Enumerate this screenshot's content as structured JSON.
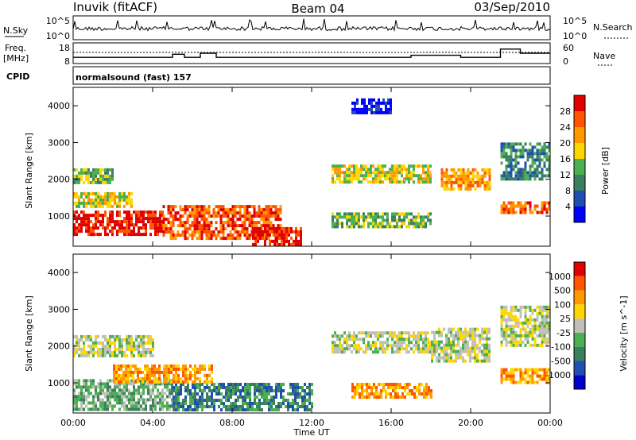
{
  "header": {
    "station": "Inuvik (fitACF)",
    "beam": "Beam 04",
    "date": "03/Sep/2010"
  },
  "top_panels": {
    "nsky_label": "N.Sky",
    "nsky_ticks": [
      "10^5",
      "10^0"
    ],
    "nsearch_label": "N.Search",
    "freq_label_1": "Freq.",
    "freq_label_2": "[MHz]",
    "freq_ticks": [
      "18",
      "8"
    ],
    "nave_label": "Nave",
    "nave_ticks": [
      "60",
      "0"
    ],
    "cpid_label": "CPID",
    "cpid_value": "normalsound (fast) 157"
  },
  "chart_data": [
    {
      "type": "heatmap",
      "name": "power",
      "ylabel": "Slant Range [km]",
      "yticks": [
        "4000",
        "3000",
        "2000",
        "1000"
      ],
      "ylim": [
        180,
        4500
      ],
      "xlim_hours": [
        0,
        24
      ],
      "colorbar_label": "Power [dB]",
      "colorbar_ticks": [
        "28",
        "24",
        "20",
        "16",
        "12",
        "8",
        "4"
      ],
      "colors": [
        "#0000ff",
        "#1f4fb0",
        "#3a7f5f",
        "#4caf50",
        "#ffd700",
        "#ff9900",
        "#ff5500",
        "#e00000"
      ],
      "bands": [
        {
          "t0": 0.0,
          "t1": 4.5,
          "r0": 500,
          "r1": 1150,
          "level": 7
        },
        {
          "t0": 4.5,
          "t1": 10.5,
          "r0": 400,
          "r1": 1300,
          "level": 6
        },
        {
          "t0": 9.0,
          "t1": 11.5,
          "r0": 250,
          "r1": 700,
          "level": 7
        },
        {
          "t0": 0.0,
          "t1": 3.0,
          "r0": 1250,
          "r1": 1650,
          "level": 4
        },
        {
          "t0": 0.0,
          "t1": 2.0,
          "r0": 1950,
          "r1": 2300,
          "level": 3
        },
        {
          "t0": 13.0,
          "t1": 18.0,
          "r0": 1900,
          "r1": 2400,
          "level": 4
        },
        {
          "t0": 13.0,
          "t1": 18.0,
          "r0": 700,
          "r1": 1100,
          "level": 3
        },
        {
          "t0": 18.5,
          "t1": 21.0,
          "r0": 1700,
          "r1": 2300,
          "level": 5
        },
        {
          "t0": 21.5,
          "t1": 24.0,
          "r0": 1100,
          "r1": 1400,
          "level": 6
        },
        {
          "t0": 21.5,
          "t1": 24.0,
          "r0": 2000,
          "r1": 3000,
          "level": 2
        },
        {
          "t0": 14.0,
          "t1": 16.0,
          "r0": 3800,
          "r1": 4200,
          "level": 0
        }
      ]
    },
    {
      "type": "heatmap",
      "name": "velocity",
      "ylabel": "Slant Range [km]",
      "yticks": [
        "4000",
        "3000",
        "2000",
        "1000"
      ],
      "ylim": [
        180,
        4500
      ],
      "xlim_hours": [
        0,
        24
      ],
      "colorbar_label": "Velocity [m s^-1]",
      "colorbar_ticks": [
        "1000",
        "500",
        "100",
        "25",
        "-25",
        "-100",
        "-500",
        "-1000"
      ],
      "colors": [
        "#0000cc",
        "#1f4fb0",
        "#3a7f5f",
        "#4caf50",
        "#c0c0b8",
        "#ffd700",
        "#ff9900",
        "#ff5500",
        "#e00000"
      ],
      "bands": [
        {
          "t0": 0.0,
          "t1": 5.0,
          "r0": 300,
          "r1": 1100,
          "level": 3
        },
        {
          "t0": 5.0,
          "t1": 12.0,
          "r0": 300,
          "r1": 1000,
          "level": 2
        },
        {
          "t0": 2.0,
          "t1": 7.0,
          "r0": 1000,
          "r1": 1500,
          "level": 6
        },
        {
          "t0": 13.0,
          "t1": 18.0,
          "r0": 1800,
          "r1": 2400,
          "level": 4
        },
        {
          "t0": 18.0,
          "t1": 21.0,
          "r0": 1600,
          "r1": 2500,
          "level": 4
        },
        {
          "t0": 21.5,
          "t1": 24.0,
          "r0": 2000,
          "r1": 3100,
          "level": 4
        },
        {
          "t0": 14.0,
          "t1": 18.0,
          "r0": 600,
          "r1": 1000,
          "level": 6
        },
        {
          "t0": 21.5,
          "t1": 24.0,
          "r0": 1000,
          "r1": 1400,
          "level": 6
        },
        {
          "t0": 0.0,
          "t1": 4.0,
          "r0": 1700,
          "r1": 2300,
          "level": 4
        }
      ]
    }
  ],
  "xaxis": {
    "label": "Time UT",
    "ticks": [
      "00:00",
      "04:00",
      "08:00",
      "12:00",
      "16:00",
      "20:00",
      "00:00"
    ]
  },
  "freq_steps": [
    {
      "t0": 0,
      "t1": 5,
      "v": 11
    },
    {
      "t0": 5,
      "t1": 5.6,
      "v": 12.5
    },
    {
      "t0": 5.6,
      "t1": 6.4,
      "v": 11
    },
    {
      "t0": 6.4,
      "t1": 7.2,
      "v": 13
    },
    {
      "t0": 7.2,
      "t1": 17,
      "v": 11
    },
    {
      "t0": 17,
      "t1": 19.5,
      "v": 12
    },
    {
      "t0": 19.5,
      "t1": 21.5,
      "v": 11
    },
    {
      "t0": 21.5,
      "t1": 22.5,
      "v": 15
    },
    {
      "t0": 22.5,
      "t1": 24,
      "v": 13
    }
  ]
}
